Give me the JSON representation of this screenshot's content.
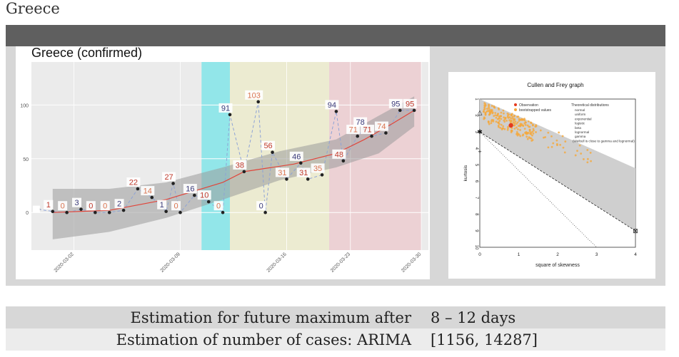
{
  "page": {
    "heading": "Greece"
  },
  "chart_data": [
    {
      "type": "line",
      "title": "Greece (confirmed)",
      "xlabel": "",
      "ylabel": "",
      "x_tick_labels": [
        "2020-03-02",
        "2020-03-09",
        "2020-03-16",
        "2020-03-23",
        "2020-03-30"
      ],
      "y_ticks": [
        0,
        50,
        100
      ],
      "ylim": [
        -35,
        140
      ],
      "x": [
        -1,
        0,
        1,
        2,
        3,
        4,
        5,
        6,
        7,
        8,
        9,
        10,
        11,
        12,
        13,
        14,
        15,
        16,
        17,
        18,
        19,
        20,
        21,
        22,
        23,
        24,
        25,
        26
      ],
      "points": [
        {
          "x": -1,
          "y": 3,
          "label": ""
        },
        {
          "x": 0,
          "y": 1,
          "label": "1"
        },
        {
          "x": 1,
          "y": 0,
          "label": "0"
        },
        {
          "x": 2,
          "y": 3,
          "label": "3"
        },
        {
          "x": 3,
          "y": 0,
          "label": "0"
        },
        {
          "x": 4,
          "y": 0,
          "label": "0"
        },
        {
          "x": 5,
          "y": 2,
          "label": "2"
        },
        {
          "x": 6,
          "y": 22,
          "label": "22"
        },
        {
          "x": 7,
          "y": 14,
          "label": "14"
        },
        {
          "x": 8,
          "y": 1,
          "label": "1"
        },
        {
          "x": 8.5,
          "y": 27,
          "label": "27"
        },
        {
          "x": 9,
          "y": 0,
          "label": "0"
        },
        {
          "x": 10,
          "y": 16,
          "label": "16"
        },
        {
          "x": 11,
          "y": 10,
          "label": "10"
        },
        {
          "x": 12,
          "y": 0,
          "label": "0"
        },
        {
          "x": 12.5,
          "y": 91,
          "label": "91"
        },
        {
          "x": 13.5,
          "y": 38,
          "label": "38"
        },
        {
          "x": 14.5,
          "y": 103,
          "label": "103"
        },
        {
          "x": 15,
          "y": 0,
          "label": "0"
        },
        {
          "x": 15.5,
          "y": 56,
          "label": "56"
        },
        {
          "x": 16.5,
          "y": 31,
          "label": "31"
        },
        {
          "x": 17.5,
          "y": 46,
          "label": "46"
        },
        {
          "x": 18,
          "y": 31,
          "label": "31"
        },
        {
          "x": 19,
          "y": 35,
          "label": "35"
        },
        {
          "x": 20,
          "y": 94,
          "label": "94"
        },
        {
          "x": 20.5,
          "y": 48,
          "label": "48"
        },
        {
          "x": 21.5,
          "y": 71,
          "label": "71"
        },
        {
          "x": 22,
          "y": 78,
          "label": "78"
        },
        {
          "x": 22.5,
          "y": 71,
          "label": "71"
        },
        {
          "x": 23.5,
          "y": 74,
          "label": "74"
        },
        {
          "x": 24.5,
          "y": 95,
          "label": "95"
        },
        {
          "x": 25.5,
          "y": 95,
          "label": "95"
        }
      ],
      "trend": [
        {
          "x": 0,
          "y": 0
        },
        {
          "x": 4,
          "y": 2
        },
        {
          "x": 8,
          "y": 12
        },
        {
          "x": 12,
          "y": 28
        },
        {
          "x": 13.5,
          "y": 38
        },
        {
          "x": 17,
          "y": 45
        },
        {
          "x": 20,
          "y": 55
        },
        {
          "x": 22,
          "y": 68
        },
        {
          "x": 24,
          "y": 83
        },
        {
          "x": 25.5,
          "y": 95
        }
      ],
      "band_upper": [
        {
          "x": 0,
          "y": 22
        },
        {
          "x": 4,
          "y": 22
        },
        {
          "x": 8,
          "y": 28
        },
        {
          "x": 12,
          "y": 42
        },
        {
          "x": 16,
          "y": 57
        },
        {
          "x": 20,
          "y": 68
        },
        {
          "x": 23,
          "y": 90
        },
        {
          "x": 25.5,
          "y": 108
        }
      ],
      "band_lower": [
        {
          "x": 0,
          "y": -25
        },
        {
          "x": 4,
          "y": -18
        },
        {
          "x": 8,
          "y": -5
        },
        {
          "x": 12,
          "y": 12
        },
        {
          "x": 16,
          "y": 30
        },
        {
          "x": 20,
          "y": 42
        },
        {
          "x": 23,
          "y": 55
        },
        {
          "x": 25.5,
          "y": 80
        }
      ],
      "phases": [
        {
          "x0": 10.5,
          "x1": 12.5,
          "color": "#92e6e9"
        },
        {
          "x0": 12.5,
          "x1": 19.5,
          "color": "#ecebd1"
        },
        {
          "x0": 19.5,
          "x1": 26,
          "color": "#ecd1d4"
        }
      ],
      "colors": {
        "trend": "#e0453a",
        "connector": "#8ea3d6",
        "band": "#9a9a9a"
      },
      "grid": true
    },
    {
      "type": "scatter",
      "title": "Cullen and Frey graph",
      "xlabel": "square of skewness",
      "ylabel": "kurtosis",
      "x_ticks": [
        0,
        1,
        2,
        3,
        4
      ],
      "y_ticks": [
        1,
        2,
        3,
        4,
        5,
        6,
        7,
        8,
        9,
        10
      ],
      "xlim": [
        0,
        4
      ],
      "ylim": [
        1,
        10
      ],
      "legend_left": [
        "Observation",
        "bootstrapped values"
      ],
      "legend_right_title": "Theoretical distributions",
      "legend_right": [
        "normal",
        "uniform",
        "exponential",
        "logistic",
        "beta",
        "lognormal",
        "gamma",
        "(Weibull is close to gamma and lognormal)"
      ],
      "observation": {
        "x": 0.8,
        "y": 2.6
      },
      "markers": [
        {
          "name": "uniform",
          "x": 0,
          "y": 1.8,
          "symbol": "△"
        },
        {
          "name": "normal",
          "x": 0,
          "y": 3,
          "symbol": "✱"
        },
        {
          "name": "logistic",
          "x": 0,
          "y": 4.2,
          "symbol": "+"
        },
        {
          "name": "exponential",
          "x": 4,
          "y": 9,
          "symbol": "⊠"
        }
      ],
      "colors": {
        "bootstrap": "#f5a83a",
        "observation": "#e43a1f",
        "band": "#cfcfcf"
      }
    }
  ],
  "summary": {
    "row1": {
      "label": "Estimation for future maximum after",
      "value": "8 – 12 days"
    },
    "row2": {
      "label": "Estimation of number of cases: ARIMA",
      "value": "[1156, 14287]"
    }
  }
}
